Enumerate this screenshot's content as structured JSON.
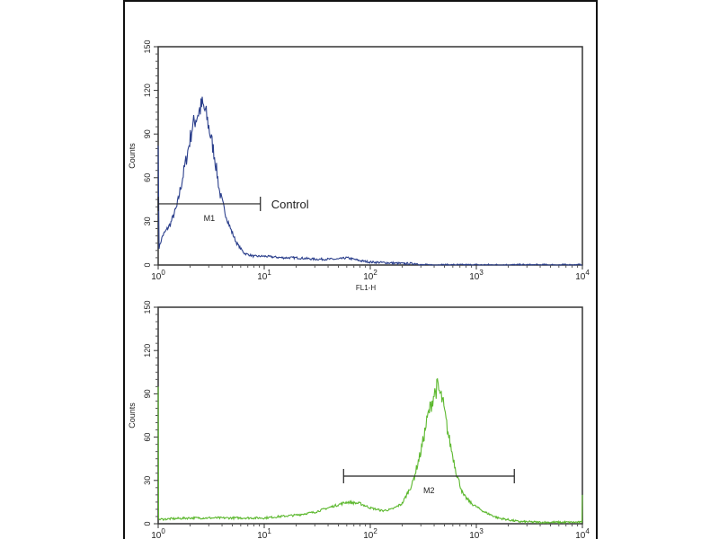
{
  "chart_data": [
    {
      "type": "line",
      "title": "",
      "xlabel": "FL1-H",
      "ylabel": "Counts",
      "xscale": "log",
      "xlim": [
        1,
        10000
      ],
      "ylim": [
        0,
        150
      ],
      "yticks": [
        "0",
        "30",
        "60",
        "90",
        "120",
        "150"
      ],
      "xticks": [
        {
          "base": "10",
          "exp": "0"
        },
        {
          "base": "10",
          "exp": "1"
        },
        {
          "base": "10",
          "exp": "2"
        },
        {
          "base": "10",
          "exp": "3"
        },
        {
          "base": "10",
          "exp": "4"
        }
      ],
      "grid": false,
      "color": "#2b3f8c",
      "marker": {
        "label": "M1",
        "from": 1,
        "to": 9.2,
        "y": 42
      },
      "annotation": "Control",
      "series": [
        {
          "x": [
            1,
            1.02,
            1.1,
            1.3,
            1.5,
            1.7,
            1.9,
            2.1,
            2.4,
            2.6,
            2.8,
            3.0,
            3.4,
            3.8,
            4.2,
            4.8,
            5.5,
            6.5,
            8,
            10,
            15,
            20,
            30,
            50,
            60,
            80,
            100,
            150,
            200,
            280,
            300,
            10000
          ],
          "y": [
            82,
            12,
            20,
            28,
            40,
            60,
            78,
            95,
            105,
            110,
            105,
            95,
            75,
            50,
            38,
            25,
            15,
            8,
            6,
            6,
            5,
            5,
            4,
            4,
            5,
            3,
            2,
            1.5,
            1,
            1,
            0,
            0
          ]
        }
      ]
    },
    {
      "type": "line",
      "title": "",
      "xlabel": "",
      "ylabel": "Counts",
      "xscale": "log",
      "xlim": [
        1,
        10000
      ],
      "ylim": [
        0,
        150
      ],
      "yticks": [
        "0",
        "30",
        "60",
        "90",
        "120",
        "150"
      ],
      "xticks": [
        {
          "base": "10",
          "exp": "0"
        },
        {
          "base": "10",
          "exp": "1"
        },
        {
          "base": "10",
          "exp": "2"
        },
        {
          "base": "10",
          "exp": "3"
        },
        {
          "base": "10",
          "exp": "4"
        }
      ],
      "grid": false,
      "color": "#5cb82e",
      "marker": {
        "label": "M2",
        "from": 56,
        "to": 2280,
        "y": 33
      },
      "series": [
        {
          "x": [
            1,
            1.01,
            2,
            5,
            10,
            20,
            30,
            40,
            60,
            80,
            100,
            130,
            160,
            200,
            250,
            300,
            350,
            400,
            430,
            480,
            550,
            650,
            750,
            900,
            1200,
            1600,
            2500,
            4000,
            9000,
            9900,
            10000
          ],
          "y": [
            95,
            3,
            4,
            4,
            4,
            6,
            8,
            11,
            15,
            14,
            11,
            9,
            10,
            14,
            28,
            50,
            75,
            90,
            95,
            85,
            60,
            35,
            20,
            14,
            8,
            4,
            1.5,
            1,
            1,
            1,
            20
          ]
        }
      ]
    }
  ]
}
